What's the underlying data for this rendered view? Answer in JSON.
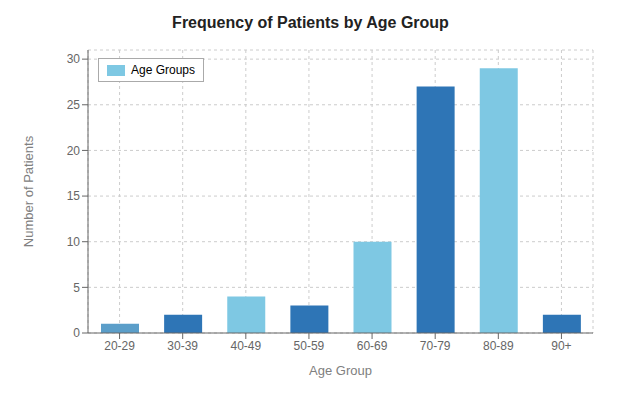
{
  "chart_data": {
    "type": "bar",
    "title": "Frequency of Patients by Age Group",
    "xlabel": "Age Group",
    "ylabel": "Number of Patients",
    "categories": [
      "20-29",
      "30-39",
      "40-49",
      "50-59",
      "60-69",
      "70-79",
      "80-89",
      "90+"
    ],
    "series": [
      {
        "name": "Age Groups",
        "color": "#7ec8e3",
        "values": [
          1,
          2,
          4,
          3,
          10,
          27,
          29,
          2
        ]
      }
    ],
    "colors": [
      "#5b9ec9",
      "#2e75b6",
      "#7ec8e3",
      "#2e75b6",
      "#7ec8e3",
      "#2e75b6",
      "#7ec8e3",
      "#2e75b6"
    ],
    "ylim": [
      0,
      31
    ],
    "yticks": [
      0,
      5,
      10,
      15,
      20,
      25,
      30
    ],
    "grid": true,
    "legend": "upper left"
  }
}
